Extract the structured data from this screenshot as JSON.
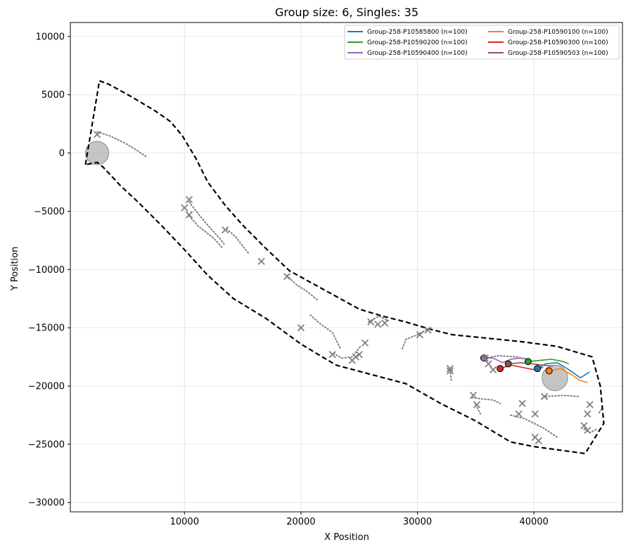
{
  "chart_data": {
    "type": "line",
    "title": "Group size: 6, Singles: 35",
    "xlabel": "X Position",
    "ylabel": "Y Position",
    "xlim": [
      200,
      47600
    ],
    "ylim": [
      -30800,
      11200
    ],
    "xticks": [
      10000,
      20000,
      30000,
      40000
    ],
    "yticks": [
      -30000,
      -25000,
      -20000,
      -15000,
      -10000,
      -5000,
      0,
      5000,
      10000
    ],
    "grid": true,
    "legend_position": "top-right",
    "boundary": [
      [
        1500,
        -1000
      ],
      [
        2700,
        6200
      ],
      [
        3500,
        5900
      ],
      [
        5500,
        4800
      ],
      [
        7500,
        3600
      ],
      [
        8800,
        2700
      ],
      [
        9800,
        1500
      ],
      [
        11000,
        -500
      ],
      [
        12000,
        -2500
      ],
      [
        13500,
        -4500
      ],
      [
        15000,
        -6200
      ],
      [
        17000,
        -8200
      ],
      [
        19000,
        -10100
      ],
      [
        21000,
        -11200
      ],
      [
        23000,
        -12300
      ],
      [
        25000,
        -13400
      ],
      [
        27000,
        -14000
      ],
      [
        29000,
        -14500
      ],
      [
        31000,
        -15100
      ],
      [
        33000,
        -15600
      ],
      [
        35000,
        -15800
      ],
      [
        37000,
        -16000
      ],
      [
        39000,
        -16200
      ],
      [
        42000,
        -16600
      ],
      [
        45000,
        -17500
      ],
      [
        45700,
        -20000
      ],
      [
        46000,
        -23200
      ],
      [
        44400,
        -25800
      ],
      [
        40000,
        -25200
      ],
      [
        38000,
        -24800
      ],
      [
        35000,
        -23000
      ],
      [
        32000,
        -21500
      ],
      [
        29000,
        -19800
      ],
      [
        26000,
        -19000
      ],
      [
        23000,
        -18200
      ],
      [
        20000,
        -16400
      ],
      [
        17000,
        -14200
      ],
      [
        14200,
        -12500
      ],
      [
        12000,
        -10500
      ],
      [
        10000,
        -8300
      ],
      [
        8000,
        -6200
      ],
      [
        6000,
        -4200
      ],
      [
        4500,
        -2800
      ],
      [
        3000,
        -1200
      ],
      [
        2500,
        -800
      ],
      [
        1500,
        -1000
      ]
    ],
    "start_zone": {
      "x": 2500,
      "y": 0,
      "r": 1000
    },
    "end_zone": {
      "x": 41800,
      "y": -19300,
      "r": 1100
    },
    "singles_end_markers": [
      [
        2500,
        1600
      ],
      [
        10000,
        -4700
      ],
      [
        10400,
        -4000
      ],
      [
        10400,
        -5300
      ],
      [
        13500,
        -6600
      ],
      [
        16600,
        -9300
      ],
      [
        18800,
        -10600
      ],
      [
        20000,
        -15000
      ],
      [
        22700,
        -17300
      ],
      [
        24400,
        -17800
      ],
      [
        24700,
        -17500
      ],
      [
        25000,
        -17300
      ],
      [
        25500,
        -16300
      ],
      [
        26000,
        -14500
      ],
      [
        26600,
        -14700
      ],
      [
        27200,
        -14600
      ],
      [
        30200,
        -15600
      ],
      [
        30900,
        -15200
      ],
      [
        32800,
        -18500
      ],
      [
        32800,
        -18700
      ],
      [
        34800,
        -20800
      ],
      [
        35100,
        -21600
      ],
      [
        35800,
        -17600
      ],
      [
        36100,
        -18100
      ],
      [
        36500,
        -18600
      ],
      [
        38700,
        -22400
      ],
      [
        39000,
        -21500
      ],
      [
        40100,
        -22400
      ],
      [
        40100,
        -24400
      ],
      [
        40400,
        -24700
      ],
      [
        40900,
        -20900
      ],
      [
        44300,
        -23400
      ],
      [
        44600,
        -22400
      ],
      [
        44600,
        -23800
      ],
      [
        44800,
        -21600
      ]
    ],
    "singles_paths": [
      [
        [
          2500,
          1800
        ],
        [
          3500,
          1500
        ],
        [
          4800,
          900
        ],
        [
          5800,
          300
        ],
        [
          6700,
          -300
        ]
      ],
      [
        [
          10400,
          -4200
        ],
        [
          11000,
          -5000
        ],
        [
          12000,
          -6200
        ],
        [
          13000,
          -7300
        ],
        [
          13400,
          -7800
        ]
      ],
      [
        [
          10400,
          -5400
        ],
        [
          11200,
          -6300
        ],
        [
          12500,
          -7300
        ],
        [
          13300,
          -8200
        ]
      ],
      [
        [
          13600,
          -6500
        ],
        [
          14400,
          -7200
        ],
        [
          15000,
          -8000
        ],
        [
          15500,
          -8600
        ]
      ],
      [
        [
          18800,
          -10500
        ],
        [
          19600,
          -11300
        ],
        [
          20400,
          -11800
        ],
        [
          21400,
          -12600
        ]
      ],
      [
        [
          20800,
          -13900
        ],
        [
          21700,
          -14700
        ],
        [
          22700,
          -15400
        ],
        [
          23400,
          -16800
        ]
      ],
      [
        [
          22800,
          -17200
        ],
        [
          23500,
          -17600
        ],
        [
          24400,
          -17500
        ],
        [
          25100,
          -16600
        ]
      ],
      [
        [
          25800,
          -14500
        ],
        [
          26700,
          -14000
        ],
        [
          27500,
          -14400
        ]
      ],
      [
        [
          28700,
          -16800
        ],
        [
          29000,
          -16000
        ],
        [
          30000,
          -15600
        ],
        [
          30900,
          -15100
        ]
      ],
      [
        [
          32800,
          -18600
        ],
        [
          32900,
          -19500
        ]
      ],
      [
        [
          34700,
          -21000
        ],
        [
          35500,
          -21100
        ],
        [
          36500,
          -21200
        ],
        [
          37100,
          -21500
        ]
      ],
      [
        [
          35000,
          -21600
        ],
        [
          35400,
          -22400
        ]
      ],
      [
        [
          38000,
          -22500
        ],
        [
          39200,
          -22800
        ],
        [
          40800,
          -23600
        ],
        [
          42000,
          -24400
        ]
      ],
      [
        [
          41000,
          -20900
        ],
        [
          42500,
          -20800
        ],
        [
          43800,
          -20900
        ]
      ],
      [
        [
          44300,
          -23700
        ],
        [
          44800,
          -24000
        ],
        [
          45400,
          -23700
        ]
      ],
      [
        [
          45600,
          -22300
        ],
        [
          45800,
          -22000
        ]
      ],
      [
        [
          35800,
          -17600
        ],
        [
          37000,
          -17400
        ],
        [
          38500,
          -17500
        ],
        [
          39800,
          -17800
        ]
      ]
    ],
    "series": [
      {
        "name": "Group-258-P10585800 (n=100)",
        "color": "#1f77b4",
        "start": [
          40300,
          -18500
        ],
        "path": [
          [
            40300,
            -18500
          ],
          [
            41000,
            -18100
          ],
          [
            42000,
            -18000
          ],
          [
            43000,
            -18600
          ],
          [
            44000,
            -19300
          ],
          [
            44600,
            -18900
          ],
          [
            44800,
            -18800
          ]
        ]
      },
      {
        "name": "Group-258-P10590100 (n=100)",
        "color": "#ff7f0e",
        "start": [
          41300,
          -18700
        ],
        "path": [
          [
            41300,
            -18700
          ],
          [
            42300,
            -18500
          ],
          [
            43200,
            -19000
          ],
          [
            43900,
            -19500
          ],
          [
            44600,
            -19700
          ]
        ]
      },
      {
        "name": "Group-258-P10590200 (n=100)",
        "color": "#2ca02c",
        "start": [
          39500,
          -17900
        ],
        "path": [
          [
            39500,
            -17900
          ],
          [
            40500,
            -17800
          ],
          [
            41500,
            -17700
          ],
          [
            42500,
            -17900
          ],
          [
            43000,
            -18100
          ]
        ]
      },
      {
        "name": "Group-258-P10590300 (n=100)",
        "color": "#d62728",
        "start": [
          37100,
          -18500
        ],
        "path": [
          [
            37100,
            -18500
          ],
          [
            38000,
            -18200
          ],
          [
            39000,
            -18400
          ],
          [
            40000,
            -18600
          ],
          [
            40800,
            -18400
          ]
        ]
      },
      {
        "name": "Group-258-P10590400 (n=100)",
        "color": "#9467bd",
        "start": [
          35700,
          -17600
        ],
        "path": [
          [
            35700,
            -17600
          ],
          [
            36500,
            -17600
          ],
          [
            37300,
            -18000
          ],
          [
            38000,
            -17700
          ],
          [
            38800,
            -17600
          ],
          [
            39600,
            -17700
          ]
        ]
      },
      {
        "name": "Group-258-P10590503 (n=100)",
        "color": "#8c564b",
        "start": [
          37800,
          -18100
        ],
        "path": [
          [
            37800,
            -18100
          ],
          [
            38800,
            -18000
          ],
          [
            39800,
            -18100
          ],
          [
            40800,
            -18200
          ],
          [
            41600,
            -18300
          ]
        ]
      }
    ]
  }
}
